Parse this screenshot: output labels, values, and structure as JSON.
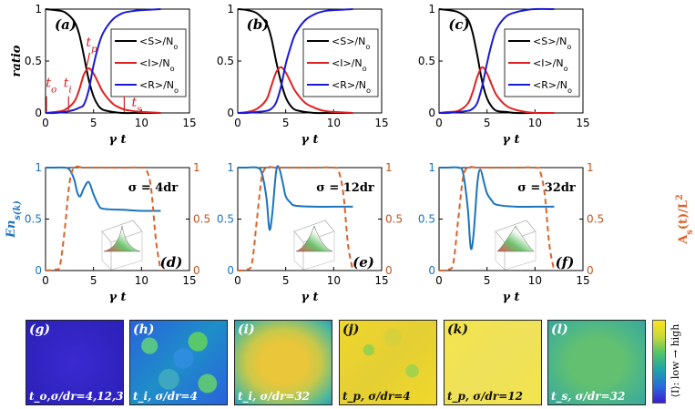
{
  "top_panels": {
    "ylabel": "ratio",
    "xlabel": "γ t",
    "legend": [
      "<S>/N_o",
      "<I>/N_o",
      "<R>/N_o"
    ],
    "panel_labels": [
      "(a)",
      "(b)",
      "(c)"
    ],
    "annotations": [
      "t_o",
      "t_i",
      "t_p",
      "t_s"
    ]
  },
  "bottom_panels": {
    "ylabel_left": "En_s(k)",
    "ylabel_right": "A_s(t)/L^2",
    "xlabel": "γ t",
    "panel_labels": [
      "(d)",
      "(e)",
      "(f)"
    ],
    "sigma_labels": [
      "σ = 4dr",
      "σ = 12dr",
      "σ = 32dr"
    ]
  },
  "heatmaps": {
    "labels": [
      "(g)",
      "(h)",
      "(i)",
      "(j)",
      "(k)",
      "(l)"
    ],
    "captions": [
      "t_o,σ/dr=4,12,32",
      "t_i, σ/dr=4",
      "t_i, σ/dr=32",
      "t_p, σ/dr=4",
      "t_p, σ/dr=12",
      "t_s, σ/dr=32"
    ],
    "colorbar_label": "⟨I⟩: low → high"
  },
  "colors": {
    "S": "#000000",
    "I": "#e02020",
    "R": "#1a1ad6",
    "En": "#1a74bd",
    "A": "#d9622a"
  },
  "chart_data": [
    {
      "type": "line",
      "title": "(a)",
      "xlabel": "γ t",
      "ylabel": "ratio",
      "xlim": [
        0,
        15
      ],
      "ylim": [
        0,
        1
      ],
      "xticks": [
        0,
        5,
        10,
        15
      ],
      "yticks": [
        0,
        0.5,
        1
      ],
      "series": [
        {
          "name": "<S>/N_o",
          "x": [
            0,
            1,
            2,
            3,
            3.5,
            4,
            4.5,
            5,
            5.5,
            6,
            7,
            8,
            10,
            12
          ],
          "y": [
            1,
            0.99,
            0.97,
            0.88,
            0.76,
            0.55,
            0.32,
            0.16,
            0.07,
            0.03,
            0.01,
            0,
            0,
            0
          ]
        },
        {
          "name": "<I>/N_o",
          "x": [
            0,
            1,
            2,
            3,
            3.5,
            4,
            4.5,
            5,
            5.5,
            6,
            7,
            8,
            9,
            10,
            12
          ],
          "y": [
            0,
            0.01,
            0.03,
            0.11,
            0.22,
            0.37,
            0.43,
            0.38,
            0.29,
            0.2,
            0.09,
            0.04,
            0.02,
            0.01,
            0
          ]
        },
        {
          "name": "<R>/N_o",
          "x": [
            0,
            1,
            2,
            3,
            3.5,
            4,
            4.5,
            5,
            5.5,
            6,
            7,
            8,
            9,
            10,
            12
          ],
          "y": [
            0,
            0,
            0.01,
            0.03,
            0.05,
            0.08,
            0.22,
            0.46,
            0.64,
            0.77,
            0.9,
            0.96,
            0.98,
            0.99,
            1
          ]
        }
      ]
    },
    {
      "type": "line",
      "title": "(b)",
      "xlabel": "γ t",
      "ylabel": "",
      "xlim": [
        0,
        15
      ],
      "ylim": [
        0,
        1
      ],
      "xticks": [
        0,
        5,
        10,
        15
      ],
      "yticks": [
        0,
        0.5,
        1
      ],
      "series": [
        {
          "name": "<S>/N_o",
          "x": [
            0,
            1,
            2,
            3,
            3.5,
            4,
            4.5,
            5,
            5.5,
            6,
            7,
            8,
            10,
            12
          ],
          "y": [
            1,
            0.99,
            0.96,
            0.86,
            0.72,
            0.5,
            0.3,
            0.15,
            0.07,
            0.03,
            0.01,
            0,
            0,
            0
          ]
        },
        {
          "name": "<I>/N_o",
          "x": [
            0,
            1,
            2,
            3,
            3.5,
            4,
            4.5,
            5,
            5.5,
            6,
            7,
            8,
            9,
            10,
            12
          ],
          "y": [
            0,
            0.01,
            0.04,
            0.13,
            0.26,
            0.39,
            0.44,
            0.39,
            0.3,
            0.21,
            0.1,
            0.05,
            0.02,
            0.01,
            0
          ]
        },
        {
          "name": "<R>/N_o",
          "x": [
            0,
            1,
            2,
            3,
            3.5,
            4,
            4.5,
            5,
            5.5,
            6,
            7,
            8,
            9,
            10,
            12
          ],
          "y": [
            0,
            0,
            0.01,
            0.02,
            0.04,
            0.1,
            0.25,
            0.47,
            0.63,
            0.76,
            0.89,
            0.95,
            0.98,
            0.99,
            1
          ]
        }
      ]
    },
    {
      "type": "line",
      "title": "(c)",
      "xlabel": "γ t",
      "ylabel": "",
      "xlim": [
        0,
        15
      ],
      "ylim": [
        0,
        1
      ],
      "xticks": [
        0,
        5,
        10,
        15
      ],
      "yticks": [
        0,
        0.5,
        1
      ],
      "series": [
        {
          "name": "<S>/N_o",
          "x": [
            0,
            1,
            2,
            3,
            3.5,
            4,
            4.5,
            5,
            5.5,
            6,
            7,
            8,
            10,
            12
          ],
          "y": [
            1,
            0.99,
            0.97,
            0.9,
            0.77,
            0.55,
            0.3,
            0.14,
            0.06,
            0.02,
            0.01,
            0,
            0,
            0
          ]
        },
        {
          "name": "<I>/N_o",
          "x": [
            0,
            1,
            2,
            3,
            3.5,
            4,
            4.5,
            5,
            5.5,
            6,
            7,
            8,
            9,
            10,
            12
          ],
          "y": [
            0,
            0.01,
            0.02,
            0.09,
            0.2,
            0.35,
            0.44,
            0.38,
            0.27,
            0.17,
            0.07,
            0.03,
            0.01,
            0,
            0
          ]
        },
        {
          "name": "<R>/N_o",
          "x": [
            0,
            1,
            2,
            3,
            3.5,
            4,
            4.5,
            5,
            5.5,
            6,
            7,
            8,
            9,
            10,
            12
          ],
          "y": [
            0,
            0,
            0.01,
            0.02,
            0.04,
            0.1,
            0.26,
            0.48,
            0.67,
            0.81,
            0.93,
            0.97,
            0.99,
            1,
            1
          ]
        }
      ]
    },
    {
      "type": "line",
      "title": "(d)",
      "xlabel": "γ t",
      "ylabel": "En_s(k)",
      "ylabel_right": "A_s(t)/L^2",
      "xlim": [
        0,
        15
      ],
      "ylim": [
        0,
        1
      ],
      "ylim_right": [
        0,
        1
      ],
      "xticks": [
        0,
        5,
        10,
        15
      ],
      "yticks": [
        0,
        0.5,
        1
      ],
      "yticks_right": [
        0,
        0.5,
        1
      ],
      "sigma": "σ = 4dr",
      "series": [
        {
          "name": "En_s(k)",
          "axis": "left",
          "x": [
            0,
            1,
            2,
            2.5,
            3,
            3.3,
            3.6,
            4,
            4.5,
            5,
            5.5,
            6,
            8,
            10,
            12
          ],
          "y": [
            1,
            1,
            1,
            0.98,
            0.88,
            0.76,
            0.72,
            0.8,
            0.86,
            0.74,
            0.64,
            0.6,
            0.59,
            0.58,
            0.58
          ]
        },
        {
          "name": "A_s(t)/L^2",
          "axis": "right",
          "x": [
            0,
            1,
            1.5,
            2,
            2.5,
            3,
            4,
            6,
            8,
            10,
            10.5,
            11,
            11.5,
            12
          ],
          "y": [
            0,
            0.01,
            0.05,
            0.4,
            0.85,
            1,
            1,
            1,
            1,
            1,
            0.98,
            0.8,
            0.3,
            0
          ]
        }
      ]
    },
    {
      "type": "line",
      "title": "(e)",
      "xlabel": "γ t",
      "ylabel": "",
      "ylabel_right": "",
      "xlim": [
        0,
        15
      ],
      "ylim": [
        0,
        1
      ],
      "ylim_right": [
        0,
        1
      ],
      "xticks": [
        0,
        5,
        10,
        15
      ],
      "yticks": [
        0,
        0.5,
        1
      ],
      "yticks_right": [
        0,
        0.5,
        1
      ],
      "sigma": "σ = 12dr",
      "series": [
        {
          "name": "En_s(k)",
          "axis": "left",
          "x": [
            0,
            1,
            2,
            2.5,
            3,
            3.3,
            3.6,
            4,
            4.3,
            4.7,
            5,
            5.5,
            6,
            8,
            10,
            12
          ],
          "y": [
            1,
            1,
            1,
            0.95,
            0.7,
            0.4,
            0.55,
            0.96,
            1,
            0.85,
            0.72,
            0.66,
            0.63,
            0.62,
            0.62,
            0.62
          ]
        },
        {
          "name": "A_s(t)/L^2",
          "axis": "right",
          "x": [
            0,
            1,
            1.5,
            2,
            2.5,
            3,
            4,
            6,
            8,
            10,
            10.5,
            11,
            11.5,
            12
          ],
          "y": [
            0,
            0.01,
            0.08,
            0.5,
            0.9,
            1,
            1,
            1,
            1,
            1,
            0.97,
            0.75,
            0.25,
            0
          ]
        }
      ]
    },
    {
      "type": "line",
      "title": "(f)",
      "xlabel": "γ t",
      "ylabel": "",
      "ylabel_right": "",
      "xlim": [
        0,
        15
      ],
      "ylim": [
        0,
        1
      ],
      "ylim_right": [
        0,
        1
      ],
      "xticks": [
        0,
        5,
        10,
        15
      ],
      "yticks": [
        0,
        0.5,
        1
      ],
      "yticks_right": [
        0,
        0.5,
        1
      ],
      "sigma": "σ = 32dr",
      "series": [
        {
          "name": "En_s(k)",
          "axis": "left",
          "x": [
            0,
            1,
            2,
            2.5,
            3,
            3.3,
            3.6,
            4,
            4.3,
            4.7,
            5,
            5.5,
            6,
            8,
            10,
            12
          ],
          "y": [
            1,
            1,
            1,
            0.95,
            0.6,
            0.22,
            0.35,
            0.85,
            0.98,
            0.85,
            0.75,
            0.68,
            0.64,
            0.62,
            0.62,
            0.62
          ]
        },
        {
          "name": "A_s(t)/L^2",
          "axis": "right",
          "x": [
            0,
            1,
            1.5,
            2,
            2.5,
            3,
            4,
            6,
            8,
            10,
            10.5,
            11,
            11.5,
            12
          ],
          "y": [
            0,
            0.01,
            0.08,
            0.5,
            0.9,
            1,
            1,
            1,
            1,
            1,
            0.97,
            0.75,
            0.25,
            0
          ]
        }
      ]
    }
  ]
}
